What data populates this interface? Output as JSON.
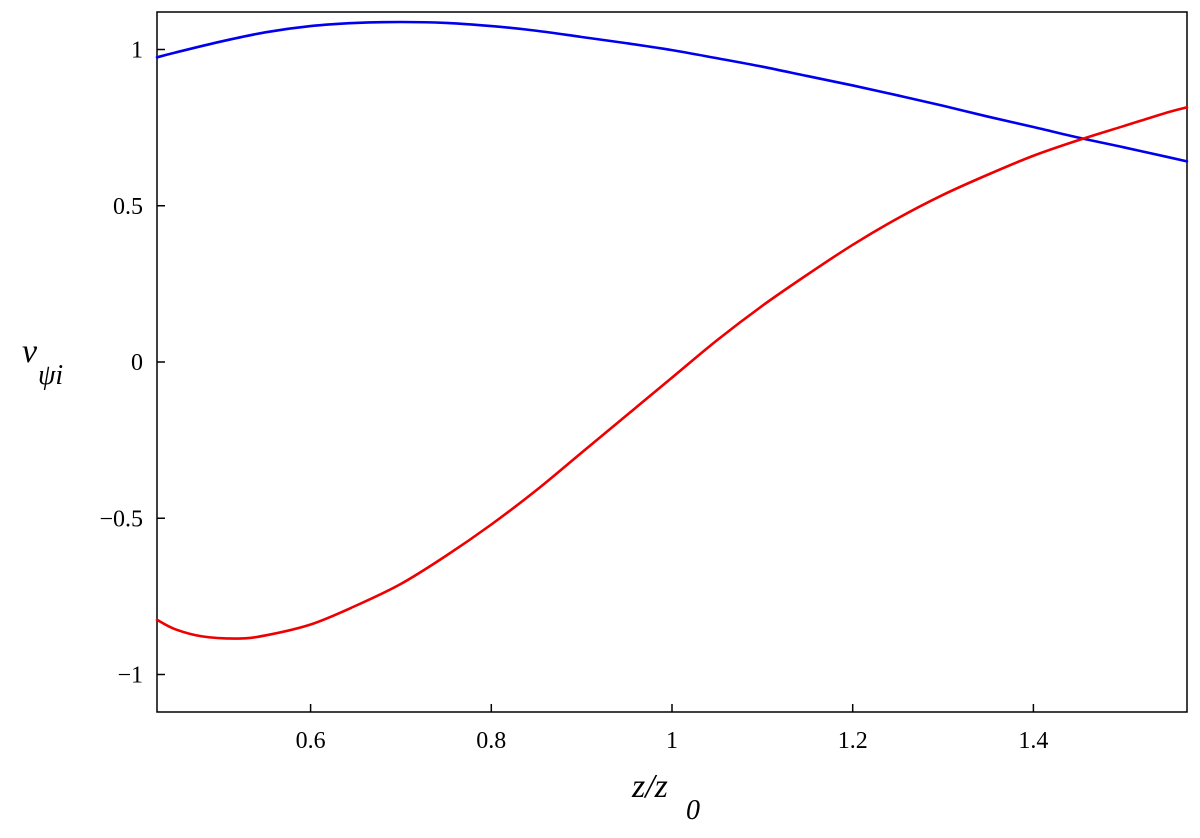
{
  "chart_data": {
    "type": "line",
    "title": "",
    "xlabel": {
      "main": "z/z",
      "sub": "0"
    },
    "ylabel": {
      "main": "v",
      "sub": "ψi"
    },
    "xlim": [
      0.43,
      1.57
    ],
    "ylim": [
      -1.12,
      1.12
    ],
    "x_ticks": [
      {
        "value": 0.6,
        "label": "0.6"
      },
      {
        "value": 0.8,
        "label": "0.8"
      },
      {
        "value": 1.0,
        "label": "1"
      },
      {
        "value": 1.2,
        "label": "1.2"
      },
      {
        "value": 1.4,
        "label": "1.4"
      }
    ],
    "y_ticks": [
      {
        "value": -1,
        "label": "−1"
      },
      {
        "value": -0.5,
        "label": "−0.5"
      },
      {
        "value": 0,
        "label": "0"
      },
      {
        "value": 0.5,
        "label": "0.5"
      },
      {
        "value": 1,
        "label": "1"
      }
    ],
    "grid": false,
    "legend": "none",
    "series": [
      {
        "color": "#0000ee",
        "x": [
          0.43,
          0.45,
          0.5,
          0.55,
          0.6,
          0.65,
          0.7,
          0.75,
          0.8,
          0.85,
          0.9,
          0.95,
          1.0,
          1.05,
          1.1,
          1.15,
          1.2,
          1.25,
          1.3,
          1.35,
          1.4,
          1.45,
          1.5,
          1.55,
          1.57
        ],
        "y": [
          0.975,
          0.99,
          1.025,
          1.055,
          1.075,
          1.085,
          1.088,
          1.085,
          1.075,
          1.06,
          1.04,
          1.02,
          0.998,
          0.972,
          0.945,
          0.915,
          0.885,
          0.853,
          0.82,
          0.785,
          0.752,
          0.718,
          0.687,
          0.655,
          0.642
        ]
      },
      {
        "color": "#ee0000",
        "x": [
          0.43,
          0.45,
          0.48,
          0.52,
          0.55,
          0.6,
          0.65,
          0.7,
          0.75,
          0.8,
          0.85,
          0.9,
          0.95,
          1.0,
          1.05,
          1.1,
          1.15,
          1.2,
          1.25,
          1.3,
          1.35,
          1.4,
          1.45,
          1.5,
          1.55,
          1.57
        ],
        "y": [
          -0.825,
          -0.855,
          -0.878,
          -0.885,
          -0.875,
          -0.84,
          -0.78,
          -0.71,
          -0.62,
          -0.52,
          -0.41,
          -0.29,
          -0.17,
          -0.05,
          0.07,
          0.18,
          0.28,
          0.375,
          0.46,
          0.535,
          0.6,
          0.66,
          0.71,
          0.755,
          0.8,
          0.815
        ]
      }
    ]
  }
}
